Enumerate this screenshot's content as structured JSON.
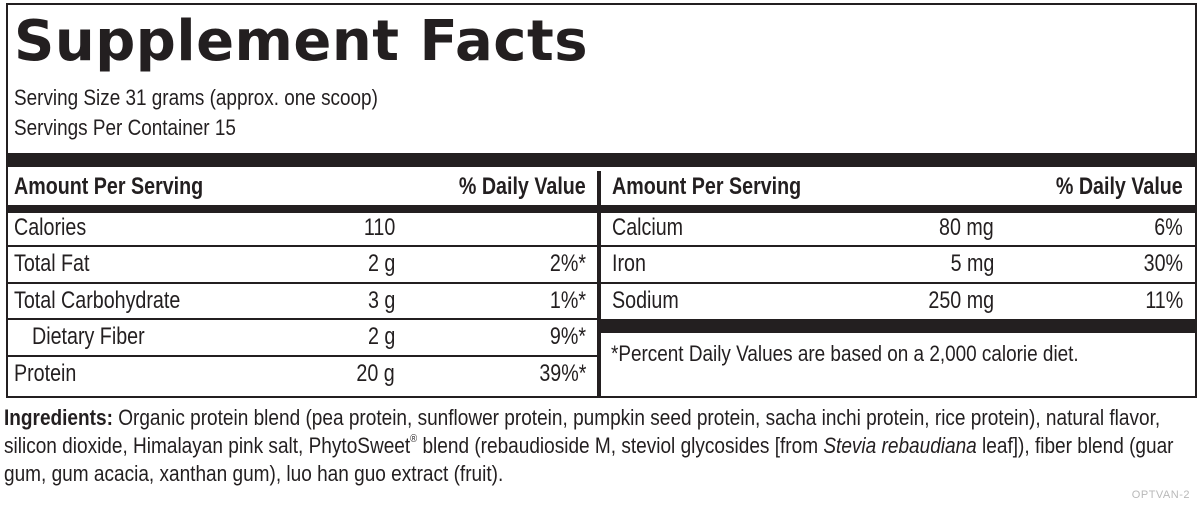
{
  "title": "Supplement Facts",
  "serving_size": "Serving Size 31 grams (approx. one scoop)",
  "servings_per_container": "Servings Per Container 15",
  "left_table": {
    "header_amount": "Amount Per Serving",
    "header_dv": "% Daily Value",
    "rows": [
      {
        "name": "Calories",
        "amount": "110",
        "dv": ""
      },
      {
        "name": "Total Fat",
        "amount": "2 g",
        "dv": "2%*"
      },
      {
        "name": "Total Carbohydrate",
        "amount": "3 g",
        "dv": "1%*"
      },
      {
        "name": "Dietary Fiber",
        "amount": "2 g",
        "dv": "9%*"
      },
      {
        "name": "Protein",
        "amount": "20 g",
        "dv": "39%*"
      }
    ]
  },
  "right_table": {
    "header_amount": "Amount Per Serving",
    "header_dv": "% Daily Value",
    "rows": [
      {
        "name": "Calcium",
        "amount": "80 mg",
        "dv": "6%"
      },
      {
        "name": "Iron",
        "amount": "5 mg",
        "dv": "30%"
      },
      {
        "name": "Sodium",
        "amount": "250 mg",
        "dv": "11%"
      }
    ],
    "footnote": "*Percent Daily Values are based on a 2,000 calorie diet."
  },
  "ingredients": {
    "label": "Ingredients:",
    "text_1": " Organic protein blend (pea protein, sunflower protein, pumpkin seed protein, sacha inchi protein, rice protein), natural flavor, silicon dioxide, Himalayan pink salt, PhytoSweet",
    "registered": "®",
    "text_2": " blend (rebaudioside M, steviol glycosides [from ",
    "italic": "Stevia rebaudiana",
    "text_3": " leaf]), fiber blend (guar gum, gum acacia, xanthan gum), luo han guo extract (fruit)."
  },
  "product_code": "OPTVAN-2"
}
